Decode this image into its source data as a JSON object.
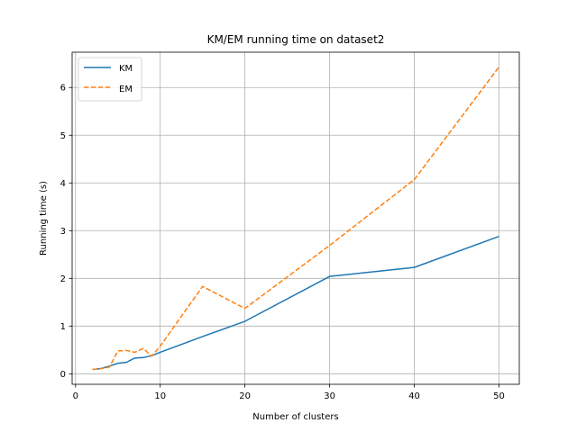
{
  "chart_data": {
    "type": "line",
    "title": "KM/EM running time on dataset2",
    "xlabel": "Number of clusters",
    "ylabel": "Running time (s)",
    "xlim": [
      -0.4,
      52.4
    ],
    "ylim": [
      -0.22,
      6.74
    ],
    "xticks": [
      0,
      10,
      20,
      30,
      40,
      50
    ],
    "yticks": [
      0,
      1,
      2,
      3,
      4,
      5,
      6
    ],
    "grid": true,
    "legend_position": "top-left",
    "series": [
      {
        "name": "KM",
        "color": "#1f77b4",
        "dash": "solid",
        "x": [
          2,
          3,
          4,
          5,
          6,
          7,
          8,
          9,
          10,
          15,
          20,
          30,
          40,
          50
        ],
        "y": [
          0.09,
          0.11,
          0.16,
          0.22,
          0.24,
          0.33,
          0.34,
          0.38,
          0.45,
          0.78,
          1.1,
          2.04,
          2.23,
          2.88
        ]
      },
      {
        "name": "EM",
        "color": "#ff7f0e",
        "dash": "dashed",
        "x": [
          2,
          3,
          4,
          5,
          6,
          7,
          8,
          9,
          10,
          15,
          20,
          30,
          40,
          50
        ],
        "y": [
          0.09,
          0.11,
          0.14,
          0.48,
          0.49,
          0.45,
          0.53,
          0.37,
          0.58,
          1.83,
          1.37,
          2.69,
          4.07,
          6.43
        ]
      }
    ]
  }
}
